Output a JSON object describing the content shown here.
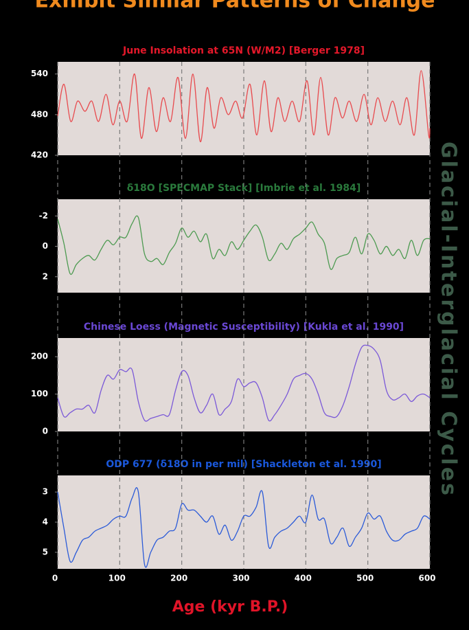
{
  "title": "Exhibit Similar Patterns of Change",
  "side_label": "Glacial-Interglacial Cycles",
  "x_label": "Age (kyr B.P.)",
  "chart_data": [
    {
      "type": "line",
      "title": "June Insolation at 65N (W/M2) [Berger 1978]",
      "title_color": "#e4182a",
      "color": "#e84a4e",
      "xlim": [
        0,
        600
      ],
      "ylim": [
        420,
        558
      ],
      "yticks": [
        420,
        480,
        540
      ],
      "x": [
        0,
        10,
        21,
        32,
        44,
        55,
        66,
        78,
        89,
        100,
        112,
        124,
        135,
        147,
        159,
        170,
        182,
        194,
        206,
        218,
        230,
        241,
        252,
        263,
        275,
        287,
        298,
        310,
        321,
        333,
        344,
        355,
        366,
        378,
        390,
        402,
        413,
        424,
        436,
        447,
        459,
        470,
        482,
        494,
        505,
        516,
        528,
        540,
        552,
        563,
        575,
        586,
        598,
        600
      ],
      "values": [
        478,
        525,
        470,
        500,
        485,
        500,
        470,
        510,
        465,
        500,
        470,
        540,
        445,
        520,
        455,
        505,
        470,
        535,
        445,
        540,
        440,
        520,
        460,
        505,
        480,
        500,
        475,
        525,
        450,
        530,
        455,
        505,
        470,
        500,
        470,
        530,
        450,
        535,
        450,
        505,
        475,
        500,
        470,
        510,
        465,
        505,
        470,
        500,
        465,
        505,
        450,
        545,
        450,
        460
      ]
    },
    {
      "type": "line",
      "title": "δ18O [SPECMAP Stack] [Imbrie et al. 1984]",
      "title_color": "#2a7a3c",
      "color": "#4c9a50",
      "xlim": [
        0,
        600
      ],
      "ylim": [
        -3.1,
        3.05
      ],
      "y_inverted": true,
      "yticks": [
        -2,
        0,
        2
      ],
      "x": [
        0,
        10,
        20,
        30,
        40,
        50,
        60,
        70,
        80,
        90,
        100,
        110,
        120,
        130,
        140,
        150,
        160,
        170,
        180,
        190,
        200,
        210,
        220,
        230,
        240,
        250,
        260,
        270,
        280,
        290,
        300,
        310,
        320,
        330,
        340,
        350,
        360,
        370,
        380,
        390,
        400,
        410,
        420,
        430,
        440,
        450,
        460,
        470,
        480,
        490,
        500,
        510,
        520,
        530,
        540,
        550,
        560,
        570,
        580,
        590,
        600
      ],
      "values": [
        -1.8,
        -0.2,
        1.8,
        1.2,
        0.8,
        0.6,
        0.9,
        0.2,
        -0.4,
        -0.1,
        -0.6,
        -0.6,
        -1.5,
        -1.9,
        0.5,
        1.0,
        0.8,
        1.2,
        0.4,
        -0.2,
        -1.2,
        -0.6,
        -1.0,
        -0.3,
        -0.8,
        0.8,
        0.2,
        0.6,
        -0.3,
        0.2,
        -0.4,
        -1.0,
        -1.4,
        -0.6,
        0.9,
        0.5,
        -0.2,
        0.2,
        -0.5,
        -0.8,
        -1.2,
        -1.6,
        -0.8,
        -0.2,
        1.5,
        0.8,
        0.6,
        0.4,
        -0.6,
        0.5,
        -0.8,
        -0.4,
        0.5,
        0.0,
        0.6,
        0.2,
        0.8,
        -0.4,
        0.6,
        -0.4,
        -0.5
      ]
    },
    {
      "type": "line",
      "title": "Chinese Loess (Magnetic Susceptibility) [Kukla et al. 1990]",
      "title_color": "#6a48d4",
      "color": "#7a58d8",
      "xlim": [
        0,
        600
      ],
      "ylim": [
        0,
        250
      ],
      "yticks": [
        0,
        100,
        200
      ],
      "x": [
        0,
        10,
        20,
        30,
        40,
        50,
        60,
        70,
        80,
        90,
        100,
        110,
        120,
        130,
        140,
        150,
        160,
        170,
        180,
        190,
        200,
        210,
        220,
        230,
        240,
        250,
        260,
        270,
        280,
        290,
        300,
        310,
        320,
        330,
        340,
        350,
        360,
        370,
        380,
        390,
        400,
        410,
        420,
        430,
        440,
        450,
        460,
        470,
        480,
        490,
        500,
        510,
        520,
        530,
        540,
        550,
        560,
        570,
        580,
        590,
        600
      ],
      "values": [
        90,
        40,
        50,
        60,
        60,
        70,
        50,
        110,
        150,
        140,
        165,
        160,
        165,
        80,
        30,
        35,
        40,
        45,
        45,
        110,
        160,
        150,
        90,
        50,
        70,
        100,
        45,
        60,
        80,
        140,
        120,
        130,
        130,
        90,
        30,
        45,
        70,
        100,
        140,
        150,
        155,
        140,
        100,
        50,
        40,
        40,
        70,
        120,
        180,
        225,
        230,
        220,
        190,
        110,
        85,
        90,
        100,
        80,
        95,
        100,
        90
      ]
    },
    {
      "type": "line",
      "title": "ODP 677 (δ18O in per mil) [Shackleton et al. 1990]",
      "title_color": "#1a58dc",
      "color": "#2a5ad8",
      "xlim": [
        0,
        600
      ],
      "ylim": [
        2.45,
        5.55
      ],
      "y_inverted": true,
      "yticks": [
        3,
        4,
        5
      ],
      "xticks": [
        0,
        100,
        200,
        300,
        400,
        500,
        600
      ],
      "x": [
        0,
        10,
        20,
        30,
        40,
        50,
        60,
        70,
        80,
        90,
        100,
        110,
        120,
        130,
        140,
        150,
        160,
        170,
        180,
        190,
        200,
        210,
        220,
        230,
        240,
        250,
        260,
        270,
        280,
        290,
        300,
        310,
        320,
        330,
        340,
        350,
        360,
        370,
        380,
        390,
        400,
        410,
        420,
        430,
        440,
        450,
        460,
        470,
        480,
        490,
        500,
        510,
        520,
        530,
        540,
        550,
        560,
        570,
        580,
        590,
        600
      ],
      "values": [
        3.0,
        4.2,
        5.3,
        5.0,
        4.6,
        4.5,
        4.3,
        4.2,
        4.1,
        3.9,
        3.8,
        3.8,
        3.2,
        3.0,
        5.4,
        5.0,
        4.6,
        4.5,
        4.3,
        4.2,
        3.4,
        3.6,
        3.6,
        3.8,
        4.0,
        3.8,
        4.4,
        4.1,
        4.6,
        4.3,
        3.8,
        3.8,
        3.5,
        3.0,
        4.8,
        4.5,
        4.3,
        4.2,
        4.0,
        3.8,
        4.0,
        3.1,
        3.9,
        3.9,
        4.7,
        4.5,
        4.2,
        4.8,
        4.5,
        4.2,
        3.7,
        3.9,
        3.8,
        4.3,
        4.6,
        4.6,
        4.4,
        4.3,
        4.2,
        3.8,
        3.9
      ]
    }
  ]
}
